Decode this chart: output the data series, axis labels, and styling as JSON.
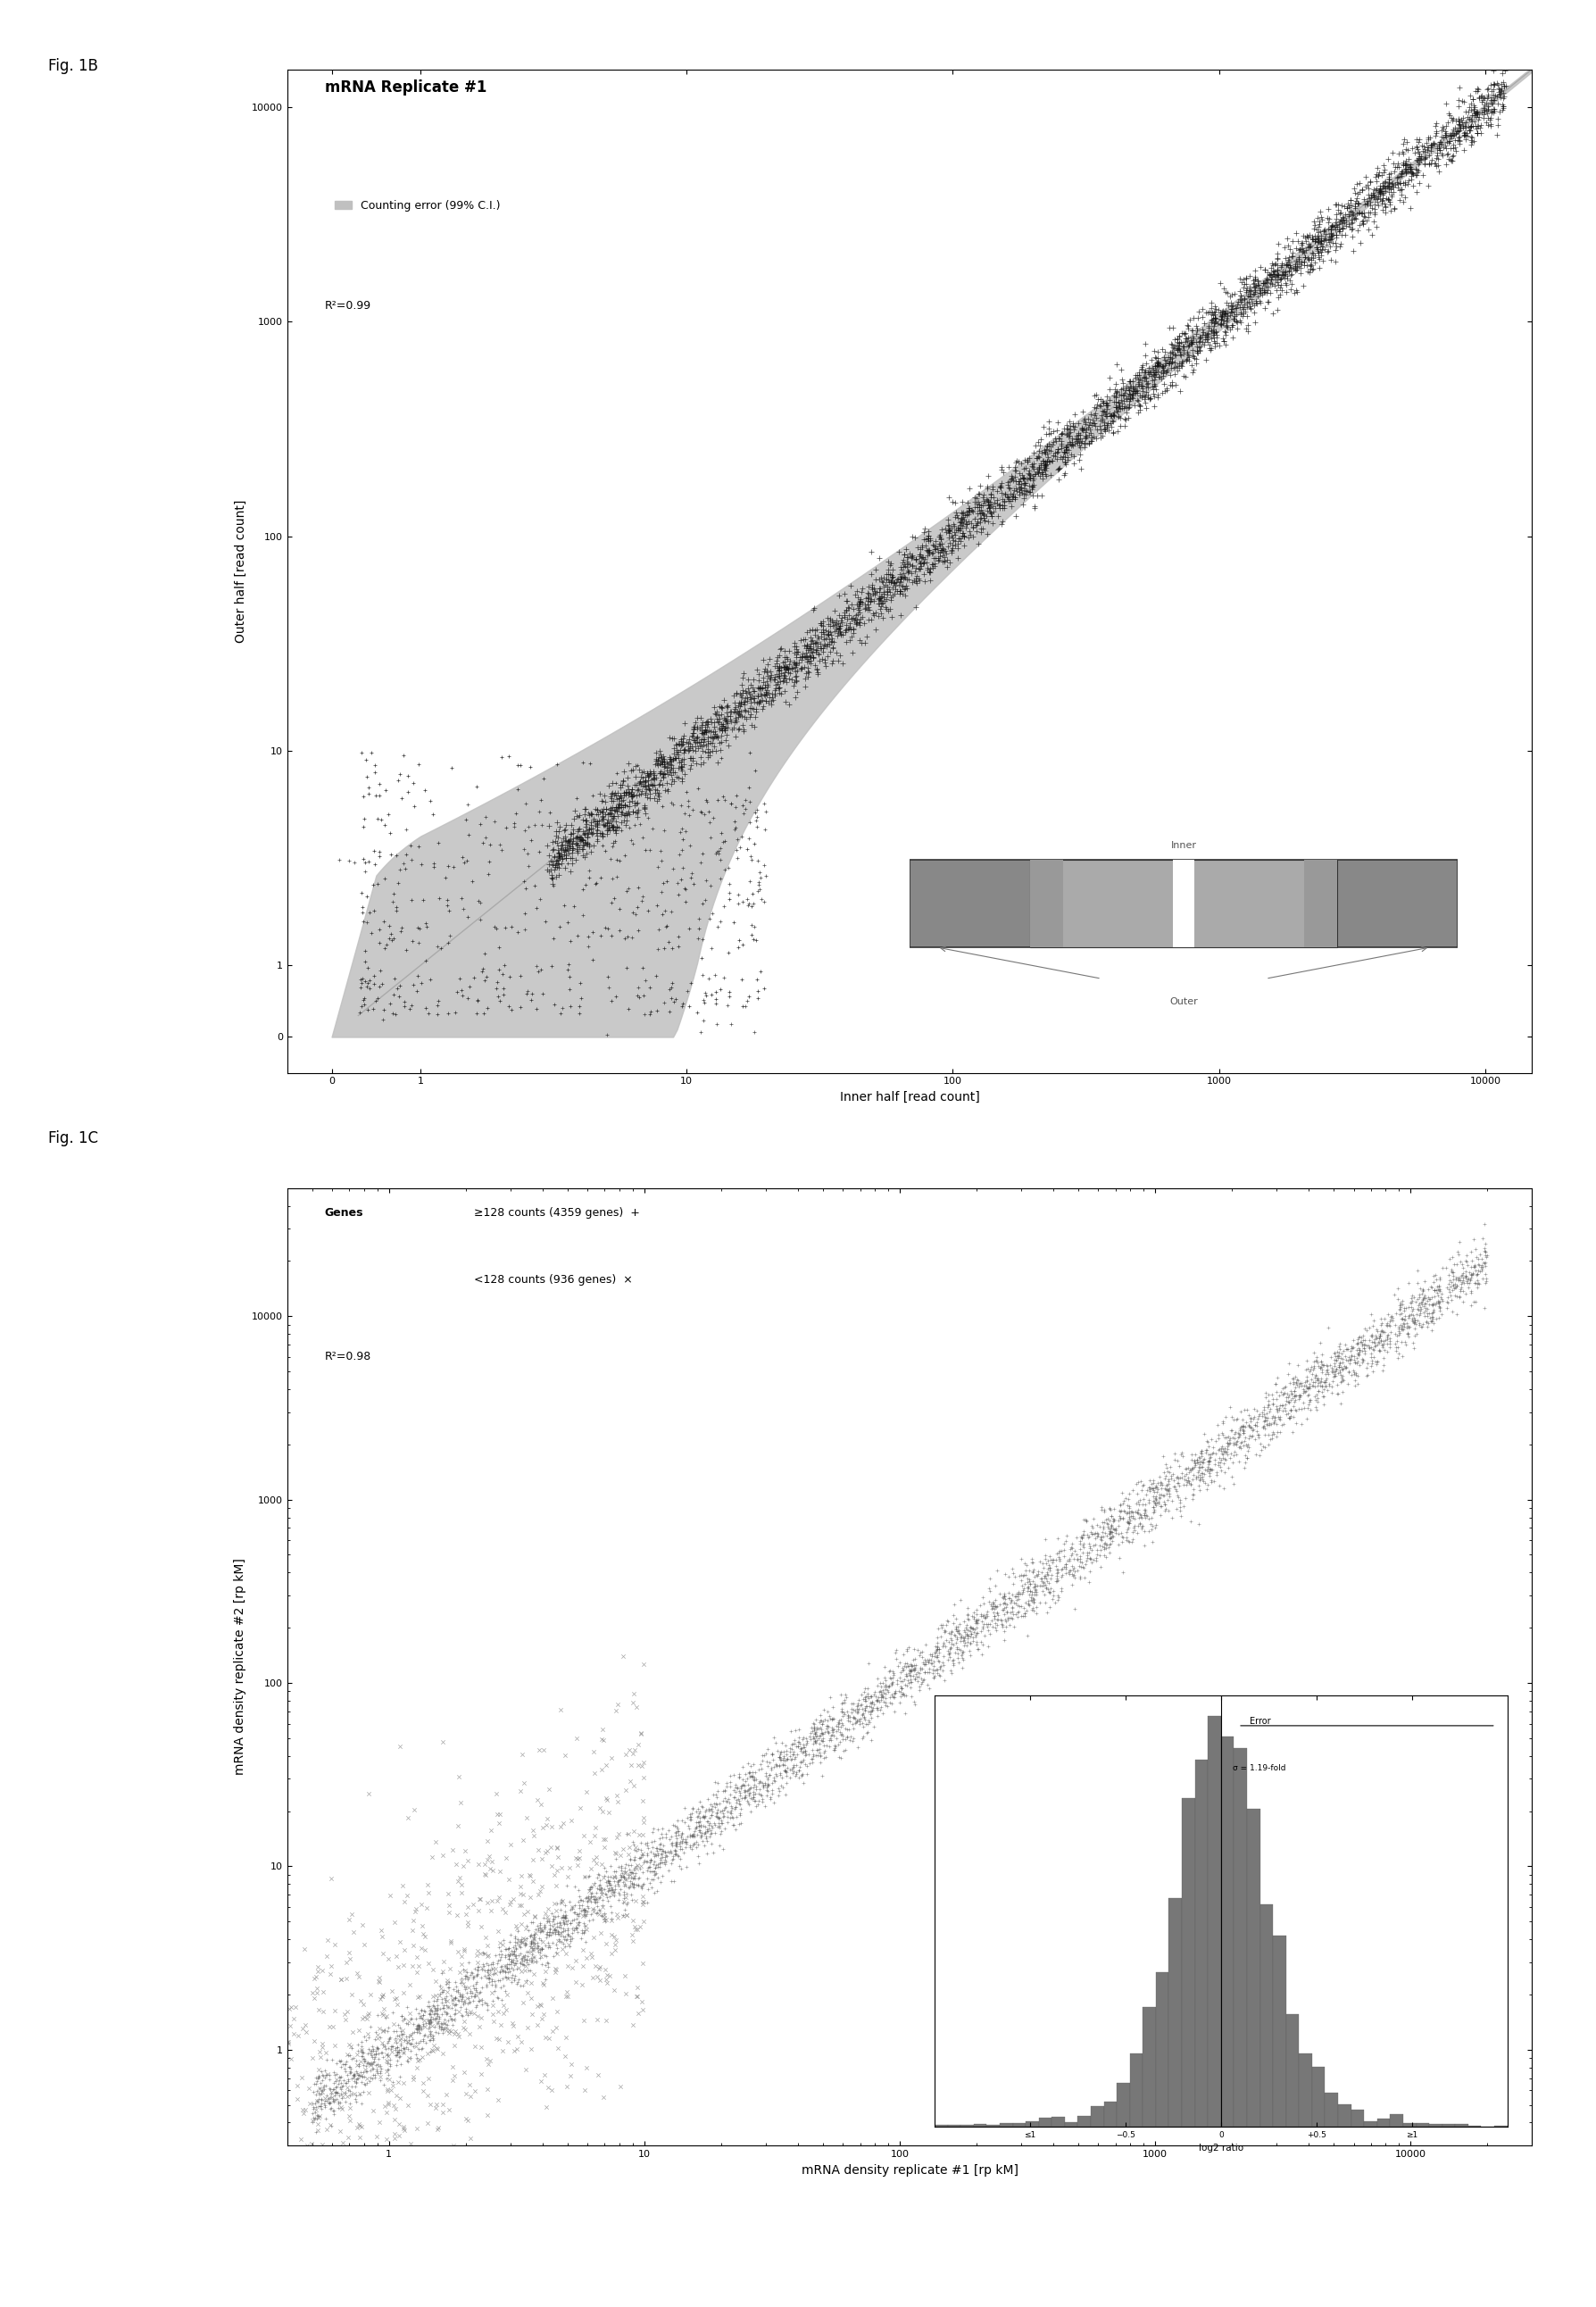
{
  "fig1b_title": "mRNA Replicate #1",
  "fig1b_legend_error": "Counting error (99% C.I.)",
  "fig1b_r2": "R²=0.99",
  "fig1b_xlabel": "Inner half [read count]",
  "fig1b_ylabel": "Outer half [read count]",
  "fig1c_legend1": "≥128 counts (4359 genes)  +",
  "fig1c_legend2": "<128 counts (936 genes)  ×",
  "fig1c_r2": "R²=0.98",
  "fig1c_xlabel": "mRNA density replicate #1 [rp kM]",
  "fig1c_ylabel": "mRNA density replicate #2 [rp kM]",
  "fig1c_error_label": "Error",
  "fig1c_sigma_label": "σ = 1.19-fold",
  "error_band_color": "#c0c0c0",
  "scatter_dark": "#111111",
  "scatter_mid": "#666666",
  "scatter_light": "#999999",
  "hist_color": "#777777",
  "diag_color": "#aaaaaa",
  "label_font_size": 10,
  "tick_font_size": 8,
  "title_font_size": 12,
  "fig_label_font_size": 12,
  "annot_font_size": 9
}
